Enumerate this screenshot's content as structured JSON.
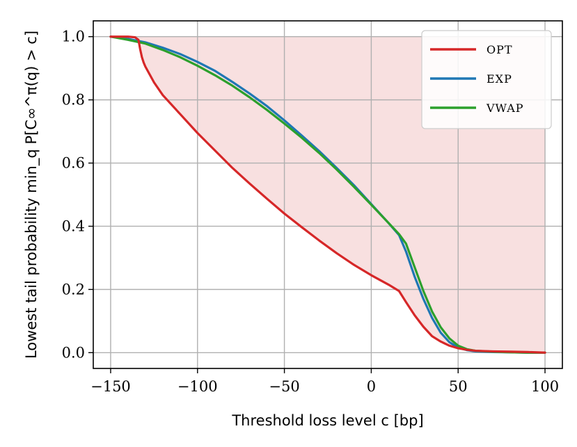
{
  "chart_data": {
    "type": "line",
    "xlabel": "Threshold loss level c [bp]",
    "ylabel": "Lowest tail probability min_q P[C∞^π(q) > c]",
    "xlim": [
      -160,
      110
    ],
    "ylim": [
      -0.05,
      1.05
    ],
    "xticks": [
      -150,
      -100,
      -50,
      0,
      50,
      100
    ],
    "xtick_labels": [
      "−150",
      "−100",
      "−50",
      "0",
      "50",
      "100"
    ],
    "yticks": [
      0.0,
      0.2,
      0.4,
      0.6,
      0.8,
      1.0
    ],
    "ytick_labels": [
      "0.0",
      "0.2",
      "0.4",
      "0.6",
      "0.8",
      "1.0"
    ],
    "grid": true,
    "legend_position": "top-right",
    "shaded_region": {
      "between": [
        "OPT",
        "upper bound 1.0"
      ],
      "color": "#f8e0e0"
    },
    "series": [
      {
        "name": "OPT",
        "color": "#d62728",
        "x": [
          -150,
          -140,
          -136,
          -134,
          -133,
          -132,
          -131,
          -130,
          -125,
          -120,
          -110,
          -100,
          -90,
          -80,
          -70,
          -60,
          -50,
          -40,
          -30,
          -20,
          -10,
          0,
          10,
          16,
          20,
          25,
          30,
          35,
          40,
          45,
          50,
          55,
          60,
          70,
          80,
          90,
          100
        ],
        "y": [
          1.0,
          1.0,
          0.998,
          0.99,
          0.96,
          0.935,
          0.918,
          0.905,
          0.855,
          0.815,
          0.755,
          0.695,
          0.64,
          0.585,
          0.535,
          0.487,
          0.44,
          0.397,
          0.355,
          0.315,
          0.278,
          0.245,
          0.215,
          0.195,
          0.16,
          0.118,
          0.082,
          0.052,
          0.035,
          0.022,
          0.014,
          0.009,
          0.006,
          0.004,
          0.003,
          0.002,
          0.0
        ]
      },
      {
        "name": "EXP",
        "color": "#1f77b4",
        "x": [
          -150,
          -140,
          -130,
          -120,
          -110,
          -100,
          -90,
          -80,
          -70,
          -60,
          -50,
          -40,
          -30,
          -20,
          -10,
          0,
          10,
          16,
          20,
          25,
          30,
          35,
          40,
          45,
          50,
          55,
          60,
          70,
          80,
          90,
          100
        ],
        "y": [
          1.0,
          0.993,
          0.982,
          0.965,
          0.945,
          0.92,
          0.892,
          0.857,
          0.82,
          0.78,
          0.735,
          0.687,
          0.638,
          0.585,
          0.53,
          0.47,
          0.41,
          0.372,
          0.32,
          0.24,
          0.17,
          0.11,
          0.063,
          0.033,
          0.016,
          0.008,
          0.004,
          0.002,
          0.001,
          0.0,
          0.0
        ]
      },
      {
        "name": "VWAP",
        "color": "#2ca02c",
        "x": [
          -150,
          -140,
          -130,
          -120,
          -110,
          -100,
          -90,
          -80,
          -70,
          -60,
          -50,
          -40,
          -30,
          -20,
          -10,
          0,
          10,
          16,
          20,
          25,
          30,
          35,
          40,
          45,
          50,
          55,
          60,
          70,
          80,
          90,
          100
        ],
        "y": [
          1.0,
          0.99,
          0.978,
          0.958,
          0.935,
          0.908,
          0.878,
          0.845,
          0.808,
          0.768,
          0.725,
          0.68,
          0.632,
          0.58,
          0.525,
          0.468,
          0.41,
          0.375,
          0.345,
          0.27,
          0.195,
          0.13,
          0.08,
          0.045,
          0.022,
          0.011,
          0.006,
          0.003,
          0.001,
          0.0,
          0.0
        ]
      }
    ]
  }
}
